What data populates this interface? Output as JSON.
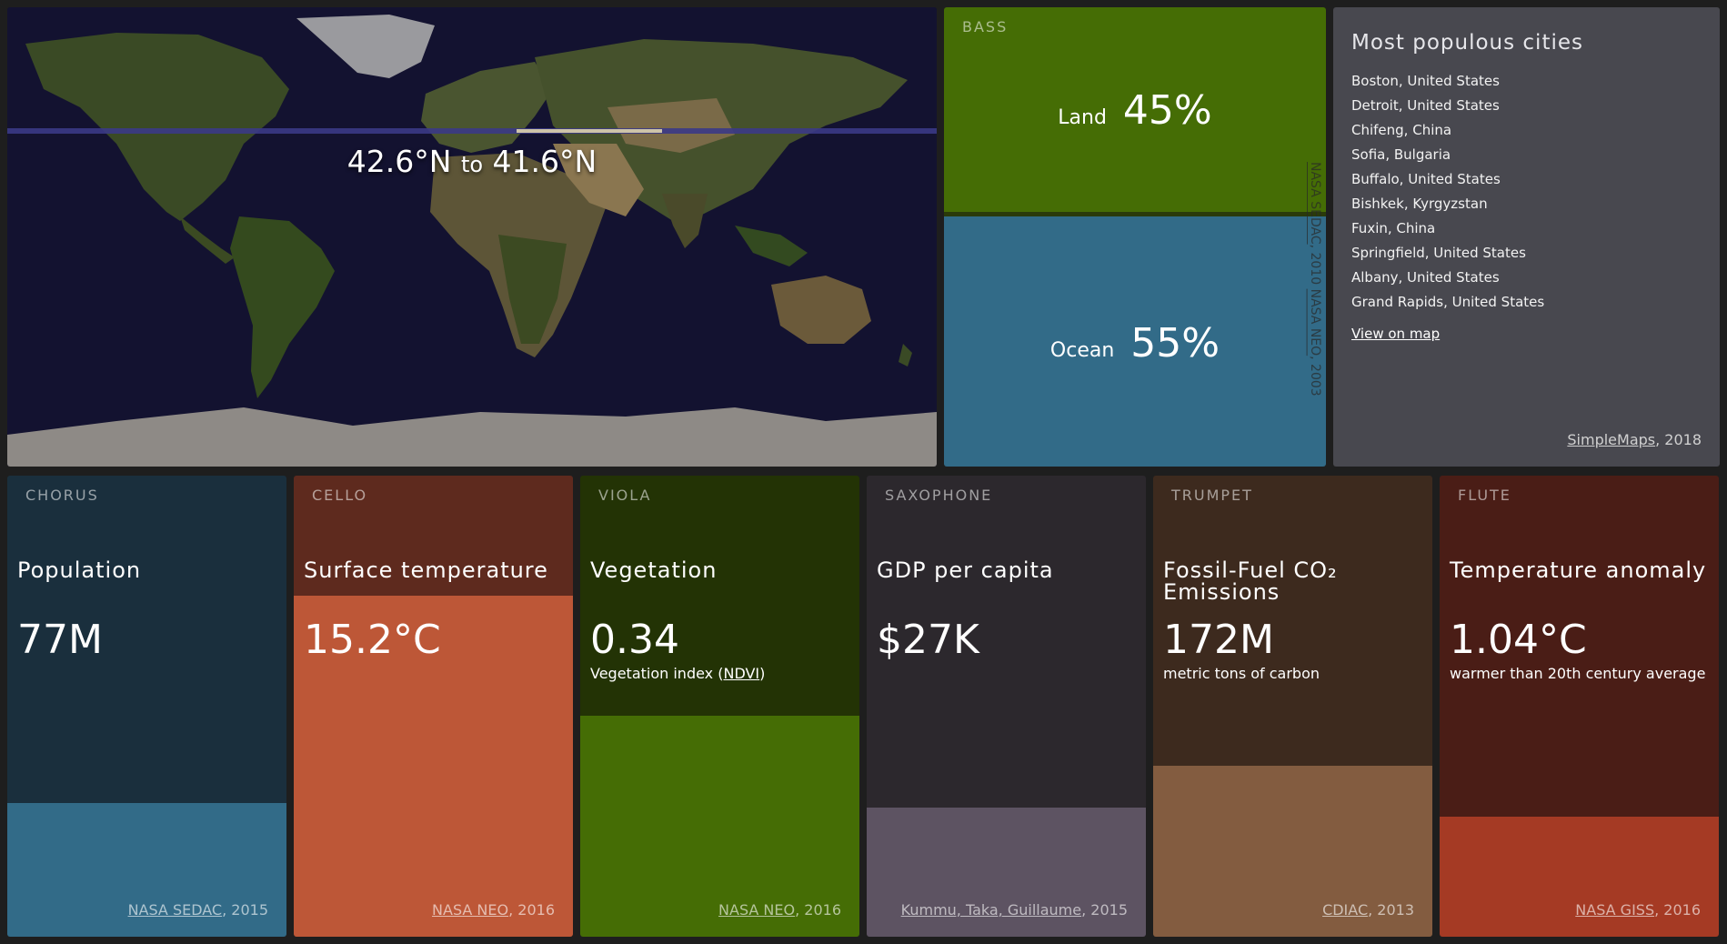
{
  "map": {
    "band_from": "42.6°N",
    "band_to_word": "to",
    "band_to": "41.6°N"
  },
  "bass": {
    "kicker": "BASS",
    "land_label": "Land",
    "land_value": "45%",
    "ocean_label": "Ocean",
    "ocean_value": "55%",
    "credit_1": "NASA SEDAC",
    "credit_1_year": ", 2010",
    "credit_2": "NASA NEO",
    "credit_2_year": ", 2003",
    "colors": {
      "land": "#456d05",
      "ocean": "#326b88"
    }
  },
  "cities": {
    "title": "Most populous cities",
    "items": [
      "Boston, United States",
      "Detroit, United States",
      "Chifeng, China",
      "Sofia, Bulgaria",
      "Buffalo, United States",
      "Bishkek, Kyrgyzstan",
      "Fuxin, China",
      "Springfield, United States",
      "Albany, United States",
      "Grand Rapids, United States"
    ],
    "view_link": "View on map",
    "credit_link": "SimpleMaps",
    "credit_year": ", 2018"
  },
  "cards": [
    {
      "kicker": "CHORUS",
      "metric": "Population",
      "value": "77M",
      "sub": "",
      "credit_link": "NASA SEDAC",
      "credit_year": ", 2015",
      "top_color": "#1a2f3d",
      "bottom_color": "#326b88",
      "fill": 0.29
    },
    {
      "kicker": "CELLO",
      "metric": "Surface temperature",
      "value": "15.2°C",
      "sub": "",
      "credit_link": "NASA NEO",
      "credit_year": ", 2016",
      "top_color": "#5e2a1e",
      "bottom_color": "#bd5737",
      "fill": 0.74
    },
    {
      "kicker": "VIOLA",
      "metric": "Vegetation",
      "value": "0.34",
      "sub_pre": "Vegetation index (",
      "sub_link": "NDVI",
      "sub_post": ")",
      "credit_link": "NASA NEO",
      "credit_year": ", 2016",
      "top_color": "#233305",
      "bottom_color": "#456d05",
      "fill": 0.48
    },
    {
      "kicker": "SAXOPHONE",
      "metric": "GDP per capita",
      "value": "$27K",
      "sub": "",
      "credit_link": "Kummu, Taka, Guillaume",
      "credit_year": ", 2015",
      "top_color": "#2c282d",
      "bottom_color": "#5d5362",
      "fill": 0.28
    },
    {
      "kicker": "TRUMPET",
      "metric": "Fossil-Fuel CO₂ Emissions",
      "value": "172M",
      "sub": "metric tons of carbon",
      "credit_link": "CDIAC",
      "credit_year": ", 2013",
      "top_color": "#3d2a1e",
      "bottom_color": "#835c40",
      "fill": 0.37
    },
    {
      "kicker": "FLUTE",
      "metric": "Temperature anomaly",
      "value": "1.04°C",
      "sub": "warmer than 20th century average",
      "credit_link": "NASA GISS",
      "credit_year": ", 2016",
      "top_color": "#4a1d16",
      "bottom_color": "#a53a24",
      "fill": 0.26
    }
  ]
}
